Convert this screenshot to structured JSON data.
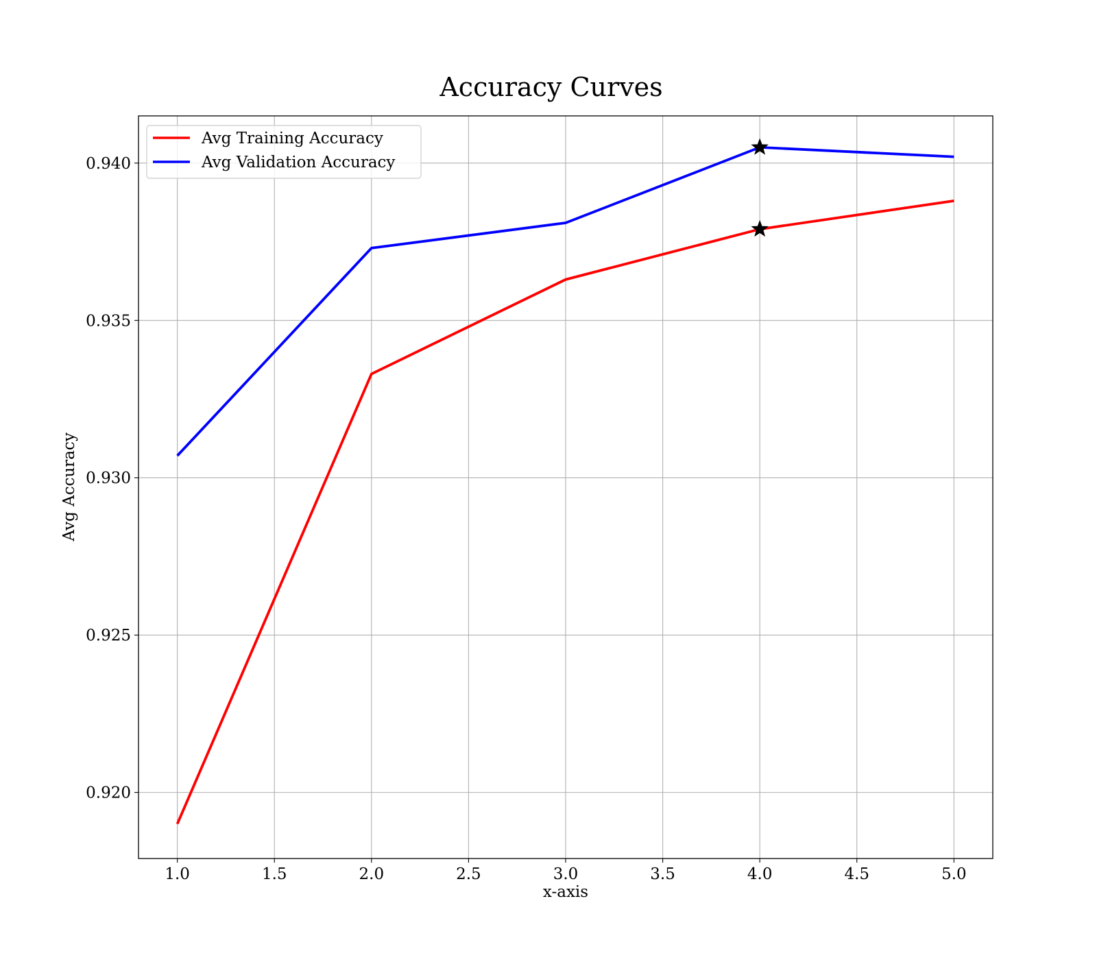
{
  "chart_data": {
    "type": "line",
    "title": "Accuracy Curves",
    "xlabel": "x-axis",
    "ylabel": "Avg Accuracy",
    "x": [
      1.0,
      2.0,
      3.0,
      4.0,
      5.0
    ],
    "xlim": [
      0.8,
      5.2
    ],
    "ylim": [
      0.9179,
      0.9415
    ],
    "xticks": [
      "1.0",
      "1.5",
      "2.0",
      "2.5",
      "3.0",
      "3.5",
      "4.0",
      "4.5",
      "5.0"
    ],
    "yticks": [
      "0.920",
      "0.925",
      "0.930",
      "0.935",
      "0.940"
    ],
    "grid": true,
    "legend_position": "top-left",
    "series": [
      {
        "name": "Avg Training Accuracy",
        "color": "#ff0000",
        "values": [
          0.919,
          0.9333,
          0.9363,
          0.9379,
          0.9388
        ],
        "best_marker_x": 4.0,
        "best_marker_y": 0.9379
      },
      {
        "name": "Avg Validation Accuracy",
        "color": "#0000ff",
        "values": [
          0.9307,
          0.9373,
          0.9381,
          0.9405,
          0.9402
        ],
        "best_marker_x": 4.0,
        "best_marker_y": 0.9405
      }
    ],
    "marker_icon": "star-icon"
  }
}
